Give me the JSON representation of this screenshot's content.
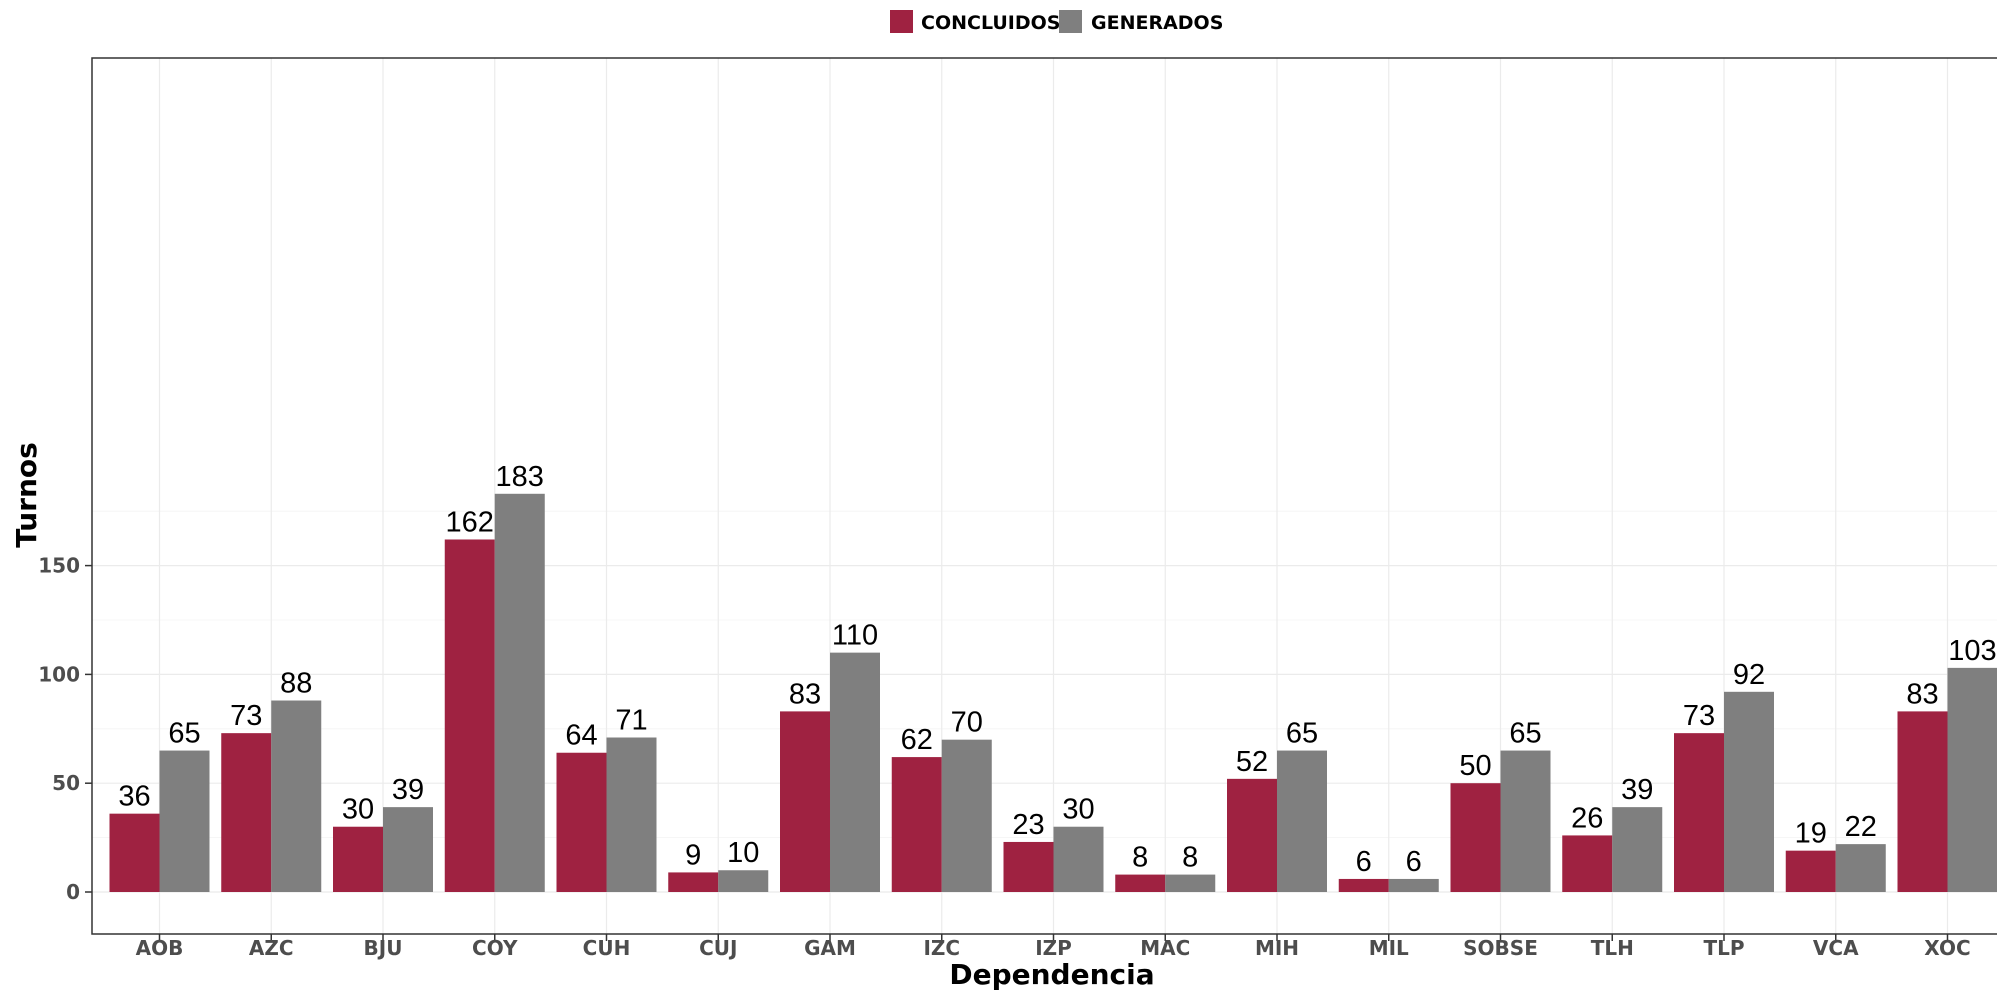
{
  "chart_data": {
    "type": "bar",
    "title": "",
    "xlabel": "Dependencia",
    "ylabel": "Turnos",
    "categories": [
      "AOB",
      "AZC",
      "BJU",
      "COY",
      "CUH",
      "CUJ",
      "GAM",
      "IZC",
      "IZP",
      "MAC",
      "MIH",
      "MIL",
      "SOBSE",
      "TLH",
      "TLP",
      "VCA",
      "XOC"
    ],
    "series": [
      {
        "name": "CONCLUIDOS",
        "color": "#9f2241",
        "values": [
          36,
          73,
          30,
          162,
          64,
          9,
          83,
          62,
          23,
          8,
          52,
          6,
          50,
          26,
          73,
          19,
          83
        ]
      },
      {
        "name": "GENERADOS",
        "color": "#7f7f7f",
        "values": [
          65,
          88,
          39,
          183,
          71,
          10,
          110,
          70,
          30,
          8,
          65,
          6,
          65,
          39,
          92,
          22,
          103
        ]
      }
    ],
    "yticks": [
      0,
      50,
      100,
      150
    ],
    "ylim": [
      0,
      192
    ],
    "grid": true,
    "legend_position": "top"
  }
}
